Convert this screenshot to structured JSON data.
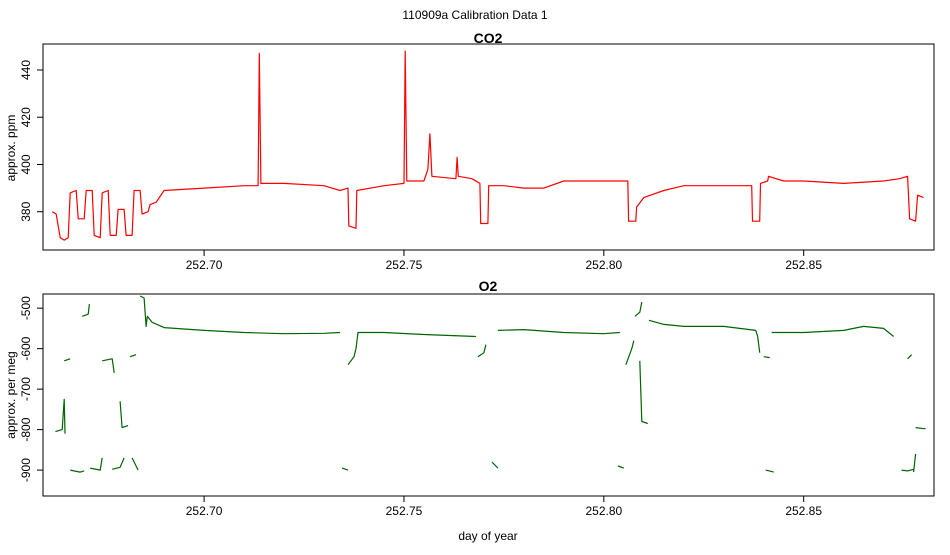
{
  "figure": {
    "title": "110909a   Calibration Data 1",
    "xlabel": "day of year"
  },
  "colors": {
    "co2": "#ff0000",
    "o2": "#006400",
    "axis": "#000000"
  },
  "chart_data": [
    {
      "type": "line",
      "title": "CO2",
      "ylabel": "approx. ppm",
      "xlabel": "",
      "xlim": [
        252.6597,
        252.8826
      ],
      "ylim": [
        363.8,
        451.0
      ],
      "x_ticks": [
        252.7,
        252.75,
        252.8,
        252.85
      ],
      "x_tick_labels": [
        "252.70",
        "252.75",
        "252.80",
        "252.85"
      ],
      "y_ticks": [
        380,
        400,
        420,
        440
      ],
      "y_tick_labels": [
        "380",
        "400",
        "420",
        "440"
      ],
      "series": [
        {
          "color": "#ff0000",
          "points": [
            [
              252.662,
              380
            ],
            [
              252.663,
              379
            ],
            [
              252.664,
              369
            ],
            [
              252.665,
              368
            ],
            [
              252.666,
              369
            ],
            [
              252.6665,
              388
            ],
            [
              252.668,
              389
            ],
            [
              252.6685,
              377
            ],
            [
              252.67,
              377
            ],
            [
              252.6705,
              389
            ],
            [
              252.672,
              389
            ],
            [
              252.6725,
              370
            ],
            [
              252.674,
              369
            ],
            [
              252.6745,
              388
            ],
            [
              252.676,
              389
            ],
            [
              252.6765,
              370
            ],
            [
              252.678,
              370
            ],
            [
              252.6785,
              381
            ],
            [
              252.68,
              381
            ],
            [
              252.6805,
              370
            ],
            [
              252.682,
              370
            ],
            [
              252.6825,
              389
            ],
            [
              252.684,
              389
            ],
            [
              252.6845,
              379
            ],
            [
              252.686,
              380
            ],
            [
              252.6865,
              383
            ],
            [
              252.688,
              384
            ],
            [
              252.69,
              389
            ],
            [
              252.7,
              390
            ],
            [
              252.71,
              391
            ],
            [
              252.7135,
              391
            ],
            [
              252.7138,
              447
            ],
            [
              252.7142,
              392
            ],
            [
              252.72,
              392
            ],
            [
              252.73,
              391
            ],
            [
              252.734,
              389
            ],
            [
              252.736,
              390
            ],
            [
              252.7362,
              374
            ],
            [
              252.738,
              373
            ],
            [
              252.7382,
              389
            ],
            [
              252.745,
              391
            ],
            [
              252.75,
              392
            ],
            [
              252.7503,
              448
            ],
            [
              252.7507,
              393
            ],
            [
              252.755,
              393
            ],
            [
              252.756,
              398
            ],
            [
              252.7565,
              413
            ],
            [
              252.757,
              395
            ],
            [
              252.763,
              394
            ],
            [
              252.7633,
              403
            ],
            [
              252.7636,
              395
            ],
            [
              252.767,
              394
            ],
            [
              252.769,
              392
            ],
            [
              252.7692,
              375
            ],
            [
              252.771,
              375
            ],
            [
              252.7712,
              391
            ],
            [
              252.775,
              391
            ],
            [
              252.78,
              390
            ],
            [
              252.785,
              390
            ],
            [
              252.79,
              393
            ],
            [
              252.8,
              393
            ],
            [
              252.806,
              393
            ],
            [
              252.8062,
              376
            ],
            [
              252.808,
              376
            ],
            [
              252.8082,
              382
            ],
            [
              252.81,
              386
            ],
            [
              252.815,
              389
            ],
            [
              252.82,
              391
            ],
            [
              252.83,
              391
            ],
            [
              252.837,
              391
            ],
            [
              252.8372,
              376
            ],
            [
              252.839,
              376
            ],
            [
              252.8392,
              392
            ],
            [
              252.841,
              393
            ],
            [
              252.8412,
              395
            ],
            [
              252.845,
              393
            ],
            [
              252.85,
              393
            ],
            [
              252.86,
              392
            ],
            [
              252.87,
              393
            ],
            [
              252.874,
              394
            ],
            [
              252.876,
              395
            ],
            [
              252.8765,
              377
            ],
            [
              252.878,
              376
            ],
            [
              252.8785,
              387
            ],
            [
              252.88,
              386
            ]
          ]
        }
      ]
    },
    {
      "type": "line",
      "title": "O2",
      "ylabel": "approx. per meg",
      "xlabel": "day of year",
      "xlim": [
        252.6597,
        252.8826
      ],
      "ylim": [
        -964,
        -465
      ],
      "x_ticks": [
        252.7,
        252.75,
        252.8,
        252.85
      ],
      "x_tick_labels": [
        "252.70",
        "252.75",
        "252.80",
        "252.85"
      ],
      "y_ticks": [
        -500,
        -600,
        -700,
        -800,
        -900
      ],
      "y_tick_labels": [
        "-500",
        "-600",
        "-700",
        "-800",
        "-900"
      ],
      "series": [
        {
          "color": "#006400",
          "segments": [
            [
              [
                252.6628,
                -805
              ],
              [
                252.6645,
                -800
              ],
              [
                252.665,
                -725
              ],
              [
                252.6652,
                -810
              ]
            ],
            [
              [
                252.665,
                -630
              ],
              [
                252.6665,
                -625
              ]
            ],
            [
              [
                252.6665,
                -900
              ],
              [
                252.669,
                -905
              ],
              [
                252.67,
                -902
              ]
            ],
            [
              [
                252.6695,
                -520
              ],
              [
                252.671,
                -515
              ],
              [
                252.6713,
                -490
              ]
            ],
            [
              [
                252.6715,
                -895
              ],
              [
                252.674,
                -900
              ],
              [
                252.6745,
                -870
              ]
            ],
            [
              [
                252.6745,
                -630
              ],
              [
                252.677,
                -625
              ],
              [
                252.6775,
                -660
              ]
            ],
            [
              [
                252.677,
                -898
              ],
              [
                252.679,
                -893
              ],
              [
                252.68,
                -870
              ]
            ],
            [
              [
                252.679,
                -730
              ],
              [
                252.6795,
                -795
              ],
              [
                252.681,
                -790
              ]
            ],
            [
              [
                252.6815,
                -620
              ],
              [
                252.683,
                -615
              ]
            ],
            [
              [
                252.682,
                -870
              ],
              [
                252.6835,
                -900
              ]
            ],
            [
              [
                252.684,
                -470
              ],
              [
                252.685,
                -475
              ],
              [
                252.6855,
                -545
              ],
              [
                252.6858,
                -520
              ],
              [
                252.687,
                -535
              ],
              [
                252.69,
                -548
              ],
              [
                252.7,
                -555
              ],
              [
                252.71,
                -560
              ],
              [
                252.72,
                -563
              ],
              [
                252.73,
                -562
              ],
              [
                252.734,
                -560
              ]
            ],
            [
              [
                252.7345,
                -895
              ],
              [
                252.736,
                -900
              ]
            ],
            [
              [
                252.736,
                -640
              ],
              [
                252.7375,
                -620
              ],
              [
                252.738,
                -600
              ],
              [
                252.7385,
                -560
              ],
              [
                252.745,
                -560
              ],
              [
                252.755,
                -565
              ],
              [
                252.768,
                -570
              ]
            ],
            [
              [
                252.7685,
                -620
              ],
              [
                252.77,
                -610
              ],
              [
                252.7705,
                -590
              ]
            ],
            [
              [
                252.772,
                -880
              ],
              [
                252.7735,
                -895
              ]
            ],
            [
              [
                252.7735,
                -555
              ],
              [
                252.78,
                -553
              ],
              [
                252.79,
                -560
              ],
              [
                252.8,
                -563
              ],
              [
                252.804,
                -560
              ]
            ],
            [
              [
                252.8035,
                -890
              ],
              [
                252.805,
                -895
              ]
            ],
            [
              [
                252.8055,
                -640
              ],
              [
                252.807,
                -600
              ],
              [
                252.8075,
                -580
              ]
            ],
            [
              [
                252.8078,
                -520
              ],
              [
                252.809,
                -510
              ],
              [
                252.8095,
                -485
              ]
            ],
            [
              [
                252.809,
                -630
              ],
              [
                252.8095,
                -780
              ],
              [
                252.811,
                -785
              ]
            ],
            [
              [
                252.8113,
                -530
              ],
              [
                252.815,
                -540
              ],
              [
                252.82,
                -545
              ],
              [
                252.83,
                -545
              ],
              [
                252.838,
                -555
              ],
              [
                252.8385,
                -570
              ],
              [
                252.839,
                -610
              ]
            ],
            [
              [
                252.84,
                -620
              ],
              [
                252.8415,
                -622
              ]
            ],
            [
              [
                252.8405,
                -900
              ],
              [
                252.8425,
                -905
              ]
            ],
            [
              [
                252.842,
                -560
              ],
              [
                252.85,
                -560
              ],
              [
                252.86,
                -555
              ],
              [
                252.865,
                -545
              ],
              [
                252.87,
                -550
              ],
              [
                252.8725,
                -570
              ]
            ],
            [
              [
                252.8745,
                -900
              ],
              [
                252.876,
                -902
              ],
              [
                252.8775,
                -898
              ]
            ],
            [
              [
                252.876,
                -625
              ],
              [
                252.877,
                -615
              ]
            ],
            [
              [
                252.8775,
                -905
              ],
              [
                252.878,
                -860
              ]
            ],
            [
              [
                252.878,
                -795
              ],
              [
                252.8805,
                -798
              ]
            ]
          ]
        }
      ]
    }
  ]
}
